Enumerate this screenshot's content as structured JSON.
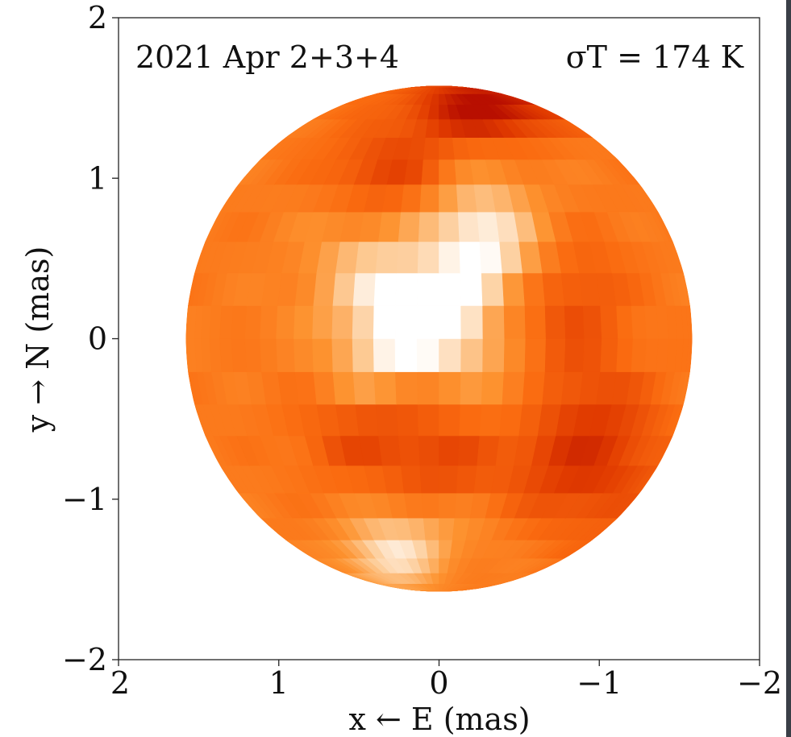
{
  "chart_data": {
    "type": "heatmap",
    "projection": "orthographic-sphere",
    "title": "",
    "annotations": {
      "date": "2021 Apr 2+3+4",
      "sigma": "σT = 174 K"
    },
    "xlabel": "x ← E (mas)",
    "ylabel": "y → N (mas)",
    "xlim": [
      2,
      -2
    ],
    "ylim": [
      -2,
      2
    ],
    "x_ticks": [
      {
        "value": 2,
        "label": "2"
      },
      {
        "value": 1,
        "label": "1"
      },
      {
        "value": 0,
        "label": "0"
      },
      {
        "value": -1,
        "label": "−1"
      },
      {
        "value": -2,
        "label": "−2"
      }
    ],
    "y_ticks": [
      {
        "value": 2,
        "label": "2"
      },
      {
        "value": 1,
        "label": "1"
      },
      {
        "value": 0,
        "label": "0"
      },
      {
        "value": -1,
        "label": "−1"
      },
      {
        "value": -2,
        "label": "−2"
      }
    ],
    "disk_radius": 1.58,
    "grid": false,
    "colormap": [
      "#b80f00",
      "#e13b00",
      "#fa6b10",
      "#fd9330",
      "#fdc890",
      "#ffffff"
    ]
  }
}
